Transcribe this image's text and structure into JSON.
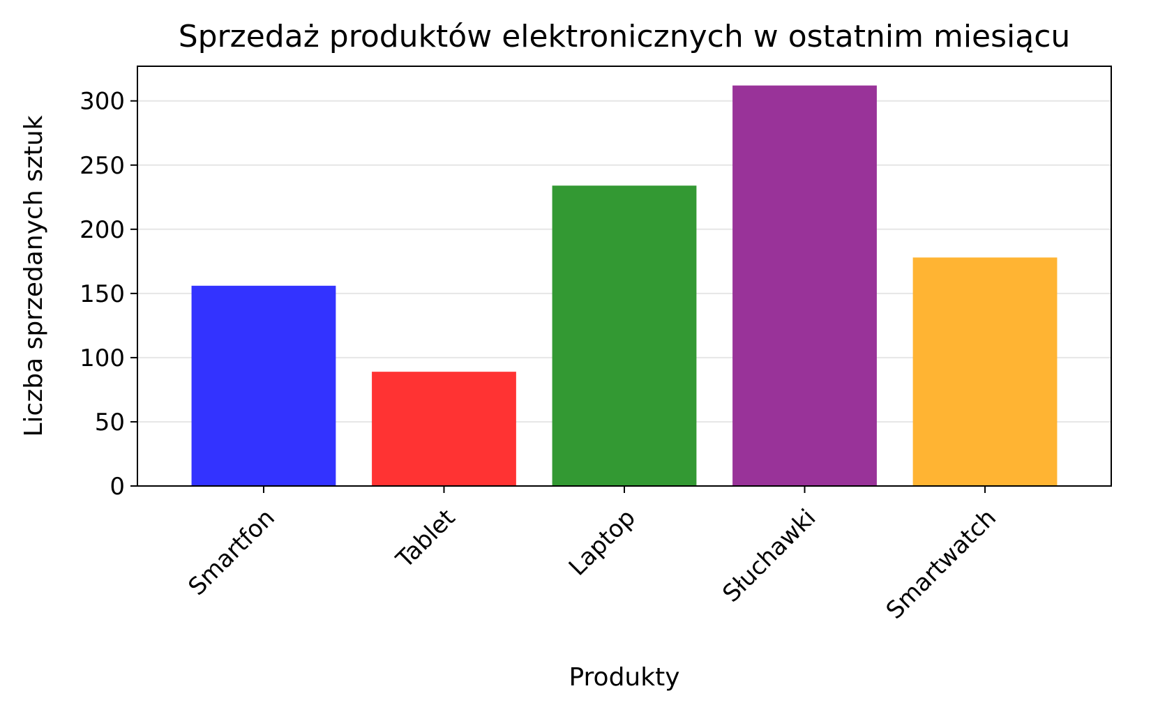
{
  "chart_data": {
    "type": "bar",
    "title": "Sprzedaż produktów elektronicznych w ostatnim miesiącu",
    "xlabel": "Produkty",
    "ylabel": "Liczba sprzedanych sztuk",
    "categories": [
      "Smartfon",
      "Tablet",
      "Laptop",
      "Słuchawki",
      "Smartwatch"
    ],
    "values": [
      156,
      89,
      234,
      312,
      178
    ],
    "colors": [
      "#3333ff",
      "#ff3333",
      "#339933",
      "#993399",
      "#ffb433"
    ],
    "ylim": [
      0,
      327
    ],
    "yticks": [
      0,
      50,
      100,
      150,
      200,
      250,
      300
    ],
    "grid": "horizontal",
    "legend": "none"
  }
}
